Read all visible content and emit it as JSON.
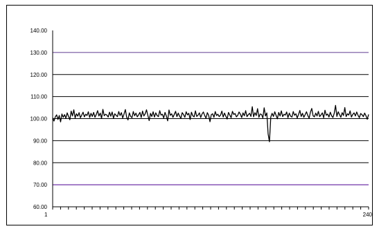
{
  "chart_data": {
    "type": "line",
    "title": "",
    "xlabel": "",
    "ylabel": "",
    "x_range": [
      1,
      240
    ],
    "x_tick_labels": [
      "1",
      "240"
    ],
    "ylim": [
      60,
      140
    ],
    "y_ticks": [
      "60.00",
      "70.00",
      "80.00",
      "90.00",
      "100.00",
      "110.00",
      "120.00",
      "130.00",
      "140.00"
    ],
    "grid": true,
    "legend": "none",
    "reference_lines": [
      {
        "value": 130,
        "color": "#8b6fb4"
      },
      {
        "value": 70,
        "color": "#7b3fb4"
      }
    ],
    "series": [
      {
        "color": "#000000",
        "values": [
          100.4,
          98.9,
          100.8,
          101.7,
          99.6,
          101.4,
          98.5,
          102.1,
          100.6,
          101.8,
          100.2,
          102.6,
          101.0,
          99.5,
          103.4,
          101.2,
          104.0,
          100.3,
          102.2,
          101.1,
          102.7,
          100.4,
          101.6,
          102.9,
          100.8,
          102.0,
          101.4,
          103.1,
          100.5,
          102.4,
          101.0,
          102.8,
          100.6,
          101.9,
          103.6,
          101.2,
          102.5,
          100.1,
          104.2,
          101.3,
          102.0,
          101.6,
          100.7,
          102.9,
          101.1,
          103.0,
          100.2,
          102.2,
          101.5,
          100.9,
          103.2,
          101.4,
          102.7,
          100.3,
          102.1,
          104.1,
          100.6,
          99.4,
          102.6,
          101.0,
          100.4,
          103.2,
          101.3,
          102.5,
          100.8,
          101.7,
          102.8,
          100.5,
          103.4,
          101.2,
          102.2,
          104.0,
          101.5,
          99.1,
          102.4,
          101.0,
          103.1,
          100.7,
          102.6,
          101.4,
          100.9,
          103.6,
          101.6,
          102.0,
          100.3,
          102.8,
          101.2,
          99.0,
          103.9,
          101.5,
          102.2,
          100.6,
          101.9,
          103.3,
          100.9,
          102.5,
          101.1,
          100.2,
          102.7,
          101.8,
          100.6,
          103.1,
          101.7,
          102.4,
          99.6,
          102.9,
          101.3,
          100.8,
          103.5,
          101.0,
          101.6,
          102.6,
          100.5,
          102.1,
          103.0,
          101.4,
          100.2,
          102.7,
          101.5,
          98.6,
          101.8,
          102.2,
          100.6,
          103.2,
          101.4,
          102.0,
          100.9,
          101.6,
          103.4,
          100.7,
          102.5,
          101.1,
          99.8,
          102.8,
          101.6,
          100.4,
          103.3,
          101.9,
          102.3,
          100.8,
          101.5,
          103.0,
          102.0,
          100.5,
          102.6,
          101.3,
          103.6,
          100.9,
          101.8,
          102.4,
          101.0,
          105.4,
          100.8,
          102.7,
          101.4,
          104.5,
          100.6,
          102.1,
          101.9,
          100.3,
          104.9,
          101.2,
          102.6,
          93.0,
          89.5,
          100.7,
          102.4,
          101.0,
          103.1,
          101.5,
          99.9,
          102.8,
          101.2,
          103.5,
          100.9,
          102.0,
          101.6,
          103.0,
          100.4,
          102.5,
          101.1,
          100.7,
          103.2,
          101.5,
          102.2,
          100.3,
          101.9,
          103.7,
          101.0,
          102.4,
          100.6,
          101.8,
          103.1,
          101.4,
          100.2,
          102.9,
          104.6,
          101.3,
          100.8,
          102.5,
          101.2,
          103.3,
          100.9,
          101.7,
          102.6,
          100.4,
          103.8,
          101.5,
          102.1,
          100.7,
          102.9,
          101.3,
          100.5,
          102.4,
          106.0,
          101.0,
          103.1,
          101.8,
          100.6,
          102.7,
          101.4,
          105.0,
          100.9,
          102.2,
          101.6,
          103.5,
          100.7,
          101.9,
          102.6,
          101.2,
          103.0,
          101.5,
          100.4,
          102.3,
          101.8,
          100.9,
          102.5,
          101.3,
          99.7,
          101.9
        ]
      }
    ]
  }
}
